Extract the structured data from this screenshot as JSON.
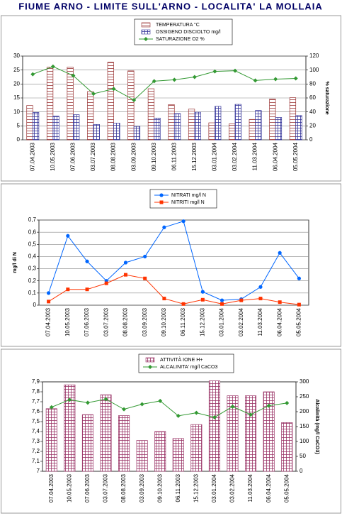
{
  "title": "FIUME ARNO - LIMITE SULL'ARNO - LOCALITA'  LA MOLLAIA",
  "chart_data": [
    {
      "type": "bar",
      "categories": [
        "07.04.2003",
        "10.05.2003",
        "07.06.2003",
        "03.07.2003",
        "08.08.2003",
        "03.09.2003",
        "09.10.2003",
        "06.11.2003",
        "15.12.2003",
        "03.01.2004",
        "03.02.2004",
        "11.03.2004",
        "06.04.2004",
        "05.05.2004"
      ],
      "series": [
        {
          "name": "TEMPERATURA  °C",
          "color": "#993333",
          "pattern": "hlines",
          "values": [
            12.3,
            26,
            26,
            17.3,
            27.8,
            24.7,
            18.3,
            12.6,
            11,
            6.1,
            5.7,
            7.3,
            14.6,
            15.1
          ]
        },
        {
          "name": "OSSIGENO DISCIOLTO  mg/l",
          "color": "#333399",
          "pattern": "grid",
          "values": [
            9.8,
            8.5,
            9,
            5.5,
            6,
            4.8,
            7.8,
            9.4,
            9.9,
            12,
            12.7,
            10.5,
            8,
            8.7
          ]
        },
        {
          "name": "SATURAZIONE O2  %",
          "color": "#339933",
          "type": "line",
          "marker": "diamond",
          "axis": "y2",
          "values": [
            94,
            105,
            92,
            66,
            73,
            57,
            84,
            86,
            90,
            98,
            99,
            85,
            87,
            88
          ]
        }
      ],
      "ylim": [
        0,
        30
      ],
      "yticks": [
        0,
        5,
        10,
        15,
        20,
        25,
        30
      ],
      "y2lim": [
        0,
        120
      ],
      "y2ticks": [
        0,
        20,
        40,
        60,
        80,
        100,
        120
      ],
      "y2label": "% saturazione",
      "grid": true
    },
    {
      "type": "line",
      "categories": [
        "07.04.2003",
        "10.05.2003",
        "07.06.2003",
        "03.07.2003",
        "08.08.2003",
        "03.09.2003",
        "09.10.2003",
        "06.11.2003",
        "15.12.2003",
        "03.01.2004",
        "03.02.2004",
        "11.03.2004",
        "06.04.2004",
        "05.05.2004"
      ],
      "series": [
        {
          "name": "NITRATI  mg/l N",
          "color": "#0066ff",
          "marker": "circle",
          "values": [
            0.1,
            0.57,
            0.36,
            0.2,
            0.35,
            0.4,
            0.64,
            0.69,
            0.11,
            0.04,
            0.05,
            0.15,
            0.43,
            0.22
          ]
        },
        {
          "name": "NITRITI  mg/l N",
          "color": "#ff3300",
          "marker": "square",
          "values": [
            0.03,
            0.13,
            0.13,
            0.18,
            0.25,
            0.22,
            0.055,
            0.01,
            0.045,
            0.01,
            0.04,
            0.055,
            0.025,
            0.005
          ]
        }
      ],
      "ylim": [
        0,
        0.7
      ],
      "yticks": [
        0,
        {
          "value": 0.1,
          "label": "0,1"
        },
        {
          "value": 0.2,
          "label": "0,2"
        },
        {
          "value": 0.3,
          "label": "0,3"
        },
        {
          "value": 0.4,
          "label": "0,4"
        },
        {
          "value": 0.5,
          "label": "0,5"
        },
        {
          "value": 0.6,
          "label": "0,6"
        },
        {
          "value": 0.7,
          "label": "0,7"
        }
      ],
      "ylabel": "mg/l di N",
      "grid": true
    },
    {
      "type": "bar",
      "categories": [
        "07.04.2003",
        "10.05.2003",
        "07.06.2003",
        "03.07.2003",
        "08.08.2003",
        "03.09.2003",
        "09.10.2003",
        "06.11.2003",
        "15.12.2003",
        "03.01.2004",
        "03.02.2004",
        "11.03.2004",
        "06.04.2004",
        "05.05.2004"
      ],
      "series": [
        {
          "name": "ATTIVITÀ IONE H+",
          "color": "#993366",
          "pattern": "grid",
          "values": [
            7.63,
            7.87,
            7.57,
            7.77,
            7.56,
            7.31,
            7.4,
            7.33,
            7.47,
            7.91,
            7.76,
            7.76,
            7.8,
            7.49
          ]
        },
        {
          "name": "ALCALINITA' mg/l CaCO3",
          "color": "#339933",
          "type": "line",
          "marker": "diamond",
          "axis": "y2",
          "values": [
            215,
            240,
            230,
            242,
            208,
            225,
            236,
            186,
            196,
            181,
            217,
            190,
            220,
            229
          ]
        }
      ],
      "ylim": [
        7,
        7.9
      ],
      "yticks": [
        7,
        {
          "value": 7.1,
          "label": "7,1"
        },
        {
          "value": 7.2,
          "label": "7,2"
        },
        {
          "value": 7.3,
          "label": "7,3"
        },
        {
          "value": 7.4,
          "label": "7,4"
        },
        {
          "value": 7.5,
          "label": "7,5"
        },
        {
          "value": 7.6,
          "label": "7,6"
        },
        {
          "value": 7.7,
          "label": "7,7"
        },
        {
          "value": 7.8,
          "label": "7,8"
        },
        {
          "value": 7.9,
          "label": "7,9"
        }
      ],
      "y2lim": [
        0,
        300
      ],
      "y2ticks": [
        0,
        50,
        100,
        150,
        200,
        250,
        300
      ],
      "y2label": "Alcalinità (mg/l CaCO3)",
      "grid": false
    }
  ]
}
